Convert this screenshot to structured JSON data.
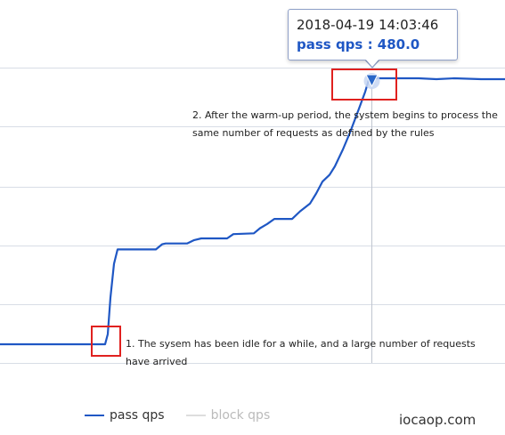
{
  "chart_data": {
    "type": "line",
    "title": "",
    "xlabel": "",
    "ylabel": "",
    "grid": true,
    "legend_position": "bottom-left",
    "series": [
      {
        "name": "pass qps",
        "color": "#1f57c4",
        "visible": true,
        "points": [
          [
            0,
            0
          ],
          [
            110,
            0
          ],
          [
            118,
            0
          ],
          [
            121,
            12
          ],
          [
            124,
            55
          ],
          [
            128,
            95
          ],
          [
            132,
            112
          ],
          [
            175,
            112
          ],
          [
            182,
            118
          ],
          [
            186,
            119
          ],
          [
            210,
            119
          ],
          [
            218,
            123
          ],
          [
            226,
            125
          ],
          [
            255,
            125
          ],
          [
            262,
            130
          ],
          [
            285,
            131
          ],
          [
            292,
            137
          ],
          [
            300,
            142
          ],
          [
            308,
            148
          ],
          [
            328,
            148
          ],
          [
            337,
            157
          ],
          [
            348,
            166
          ],
          [
            355,
            178
          ],
          [
            362,
            192
          ],
          [
            370,
            200
          ],
          [
            376,
            210
          ],
          [
            385,
            230
          ],
          [
            393,
            250
          ],
          [
            403,
            278
          ],
          [
            410,
            298
          ],
          [
            414,
            312
          ],
          [
            420,
            314
          ],
          [
            470,
            314
          ],
          [
            490,
            313
          ],
          [
            510,
            314
          ],
          [
            540,
            313
          ],
          [
            567,
            313
          ]
        ]
      },
      {
        "name": "block qps",
        "color": "#cccccc",
        "visible": false,
        "points": []
      }
    ],
    "plateau_value": 480.0
  },
  "tooltip": {
    "time": "2018-04-19 14:03:46",
    "value_line": "pass qps : 480.0"
  },
  "annotations": {
    "warmup": "2. After the warm-up period, the system begins to process the same number of requests as defined by the rules",
    "idle": "1. The sysem has been idle for a while, and a large number of requests have arrived"
  },
  "legend": [
    {
      "label": "pass qps",
      "color": "#1f57c4",
      "label_color": "#333333"
    },
    {
      "label": "block qps",
      "color": "#dddddd",
      "label_color": "#bbbbbb"
    }
  ],
  "watermark": "iocaop.com",
  "colors": {
    "grid": "#d8dde6",
    "crosshair": "#c0c6d0",
    "highlight_box": "#e0211f",
    "marker": "#2a67c8"
  }
}
